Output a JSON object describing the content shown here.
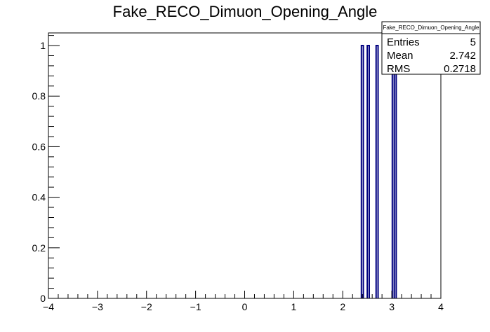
{
  "chart_data": {
    "type": "bar",
    "title": "Fake_RECO_Dimuon_Opening_Angle",
    "xlabel": "",
    "ylabel": "",
    "xlim": [
      -4,
      4
    ],
    "ylim": [
      0,
      1.05
    ],
    "x_ticks": [
      -4,
      -3,
      -2,
      -1,
      0,
      1,
      2,
      3,
      4
    ],
    "x_tick_labels": [
      "−4",
      "−3",
      "−2",
      "−1",
      "0",
      "1",
      "2",
      "3",
      "4"
    ],
    "y_ticks": [
      0,
      0.2,
      0.4,
      0.6,
      0.8,
      1
    ],
    "y_tick_labels": [
      "0",
      "0.2",
      "0.4",
      "0.6",
      "0.8",
      "1"
    ],
    "bins": [
      {
        "x": 2.4,
        "value": 1
      },
      {
        "x": 2.52,
        "value": 1
      },
      {
        "x": 2.7,
        "value": 1
      },
      {
        "x": 3.03,
        "value": 1
      },
      {
        "x": 3.07,
        "value": 1
      }
    ],
    "bin_width": 0.04,
    "line_color": "#000080",
    "grid": false,
    "legend": "none",
    "stats": {
      "title": "Fake_RECO_Dimuon_Opening_Angle",
      "placement": "top-right",
      "rows": [
        {
          "label": "Entries",
          "value": "5"
        },
        {
          "label": "Mean",
          "value": "2.742"
        },
        {
          "label": "RMS",
          "value": "0.2718"
        }
      ]
    }
  }
}
